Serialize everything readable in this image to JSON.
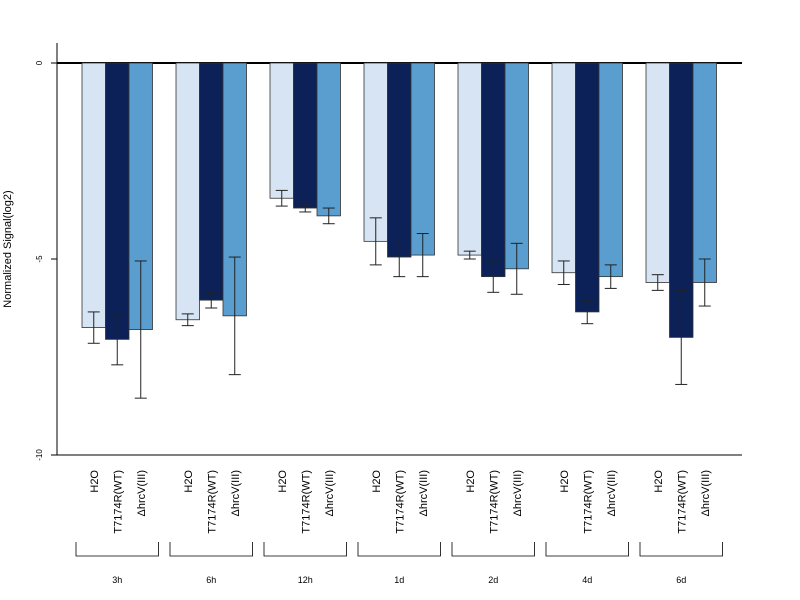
{
  "chart_data": {
    "type": "bar",
    "title": "",
    "ylabel": "Normalized Signal(log2)",
    "xlabel": "",
    "ylim": [
      -10,
      0.5
    ],
    "yticks": [
      0,
      -5,
      -10
    ],
    "grid": false,
    "groups": [
      "3h",
      "6h",
      "12h",
      "1d",
      "2d",
      "4d",
      "6d"
    ],
    "series": [
      {
        "name": "H2O",
        "color": "#d6e4f3",
        "values": [
          -6.75,
          -6.55,
          -3.45,
          -4.55,
          -4.9,
          -5.35,
          -5.6
        ],
        "errors": [
          0.4,
          0.15,
          0.2,
          0.6,
          0.1,
          0.3,
          0.2
        ]
      },
      {
        "name": "T7174R(WT)",
        "color": "#0b2158",
        "values": [
          -7.05,
          -6.05,
          -3.7,
          -4.95,
          -5.45,
          -6.35,
          -7.0
        ],
        "errors": [
          0.65,
          0.2,
          0.1,
          0.5,
          0.4,
          0.3,
          1.2
        ]
      },
      {
        "name": "ΔhrcV(III)",
        "color": "#5a9ecf",
        "values": [
          -6.8,
          -6.45,
          -3.9,
          -4.9,
          -5.25,
          -5.45,
          -5.6
        ],
        "errors": [
          1.75,
          1.5,
          0.2,
          0.55,
          0.65,
          0.3,
          0.6
        ]
      }
    ]
  }
}
